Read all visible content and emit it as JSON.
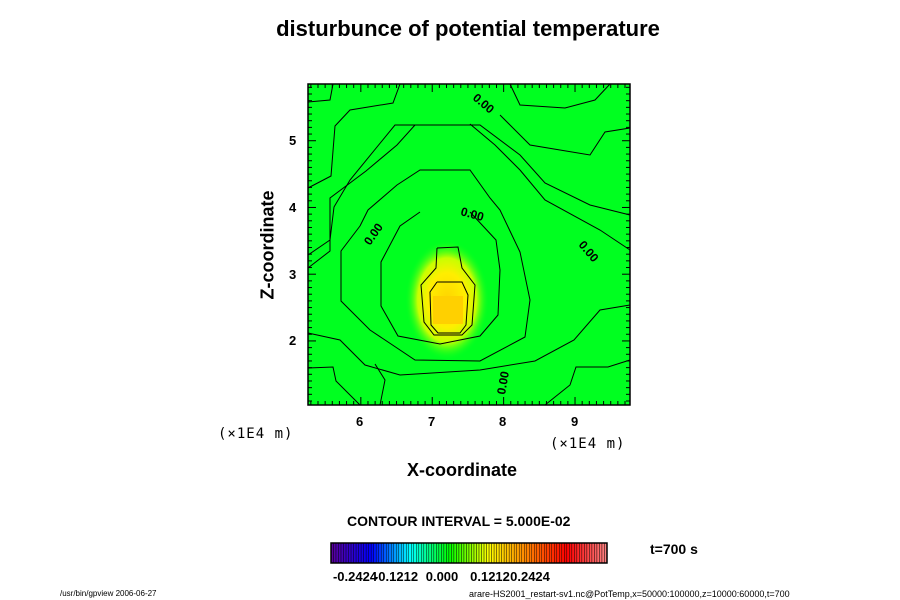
{
  "chart_data": {
    "type": "contour",
    "title": "disturbunce of potential temperature",
    "xlabel": "X-coordinate",
    "ylabel": "Z-coordinate",
    "x_unit": "(×1E4 m)",
    "z_unit": "(×1E4 m)",
    "xlim": [
      5.26,
      9.77
    ],
    "ylim": [
      1.04,
      5.85
    ],
    "xticks": [
      "6",
      "7",
      "8",
      "9"
    ],
    "xtick_values": [
      6,
      7,
      8,
      9
    ],
    "yticks": [
      "2",
      "3",
      "4",
      "5"
    ],
    "ytick_values": [
      2,
      3,
      4,
      5
    ],
    "contour_interval_label": "CONTOUR INTERVAL = 5.000E-02",
    "contour_labels": [
      "0.00",
      "0.00",
      "0.00",
      "0.00",
      "0.00"
    ],
    "max_location": [
      7.2,
      2.5
    ],
    "colorbar": {
      "ticks": [
        "-0.2424",
        "-0.1212",
        "0.000",
        "0.1212",
        "0.2424"
      ],
      "range": [
        -0.2727,
        0.2727
      ],
      "colors": [
        "#5a00a0",
        "#0000ff",
        "#00ffff",
        "#00ff00",
        "#ffff00",
        "#ff8000",
        "#ff0000",
        "#ff8080"
      ]
    },
    "time_label": "t=700 s"
  },
  "footer": {
    "left": "/usr/bin/gpview 2006-06-27",
    "right": "arare-HS2001_restart-sv1.nc@PotTemp,x=50000:100000,z=10000:60000,t=700"
  }
}
